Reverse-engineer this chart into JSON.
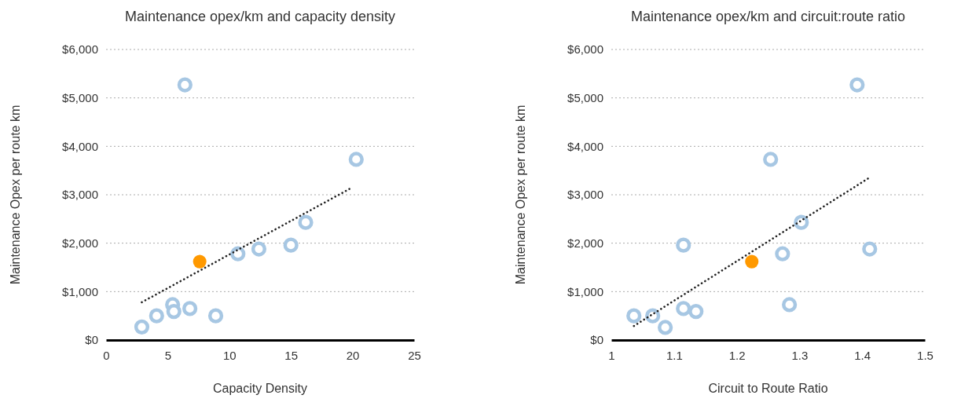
{
  "chart_data": [
    {
      "type": "scatter",
      "title": "Maintenance opex/km and capacity density",
      "xlabel": "Capacity Density",
      "ylabel": "Maintenance Opex per route km",
      "xlim": [
        0,
        25
      ],
      "xticks": [
        0,
        5,
        10,
        15,
        20,
        25
      ],
      "ylim": [
        0,
        6000
      ],
      "yticks": [
        {
          "value": 0,
          "label": "$0"
        },
        {
          "value": 1000,
          "label": "$1,000"
        },
        {
          "value": 2000,
          "label": "$2,000"
        },
        {
          "value": 3000,
          "label": "$3,000"
        },
        {
          "value": 4000,
          "label": "$4,000"
        },
        {
          "value": 5000,
          "label": "$5,000"
        },
        {
          "value": 6000,
          "label": "$6,000"
        }
      ],
      "grid": "y",
      "series": [
        {
          "color": "#a7c7e3",
          "marker": "circle",
          "x": [
            2.9,
            4.1,
            5.4,
            5.5,
            6.8,
            8.9,
            10.7,
            12.4,
            15.0,
            16.2,
            20.3,
            6.4
          ],
          "values": [
            270,
            500,
            730,
            590,
            650,
            500,
            1780,
            1880,
            1960,
            2430,
            3730,
            5270
          ]
        },
        {
          "color": "#ff9900",
          "marker": "circle",
          "x": [
            7.6
          ],
          "values": [
            1620
          ]
        },
        {
          "type": "line",
          "color": "#222222",
          "line_style": "dotted",
          "marker": "none",
          "x": [
            2.9,
            19.9
          ],
          "values": [
            780,
            3140
          ]
        }
      ]
    },
    {
      "type": "scatter",
      "title": "Maintenance opex/km and circuit:route ratio",
      "xlabel": "Circuit to Route Ratio",
      "ylabel": "Maintenance Opex per route km",
      "xlim": [
        1,
        1.5
      ],
      "xticks": [
        1,
        1.1,
        1.2,
        1.3,
        1.4,
        1.5
      ],
      "ylim": [
        0,
        6000
      ],
      "yticks": [
        {
          "value": 0,
          "label": "$0"
        },
        {
          "value": 1000,
          "label": "$1,000"
        },
        {
          "value": 2000,
          "label": "$2,000"
        },
        {
          "value": 3000,
          "label": "$3,000"
        },
        {
          "value": 4000,
          "label": "$4,000"
        },
        {
          "value": 5000,
          "label": "$5,000"
        },
        {
          "value": 6000,
          "label": "$6,000"
        }
      ],
      "grid": "y",
      "series": [
        {
          "color": "#a7c7e3",
          "marker": "circle",
          "x": [
            1.036,
            1.066,
            1.086,
            1.115,
            1.135,
            1.115,
            1.254,
            1.273,
            1.284,
            1.303,
            1.392,
            1.412
          ],
          "values": [
            500,
            500,
            260,
            650,
            590,
            1960,
            3730,
            1780,
            730,
            2430,
            5270,
            1880
          ]
        },
        {
          "color": "#ff9900",
          "marker": "circle",
          "x": [
            1.224
          ],
          "values": [
            1620
          ]
        },
        {
          "type": "line",
          "color": "#222222",
          "line_style": "dotted",
          "marker": "none",
          "x": [
            1.036,
            1.41
          ],
          "values": [
            290,
            3340
          ]
        }
      ]
    }
  ]
}
